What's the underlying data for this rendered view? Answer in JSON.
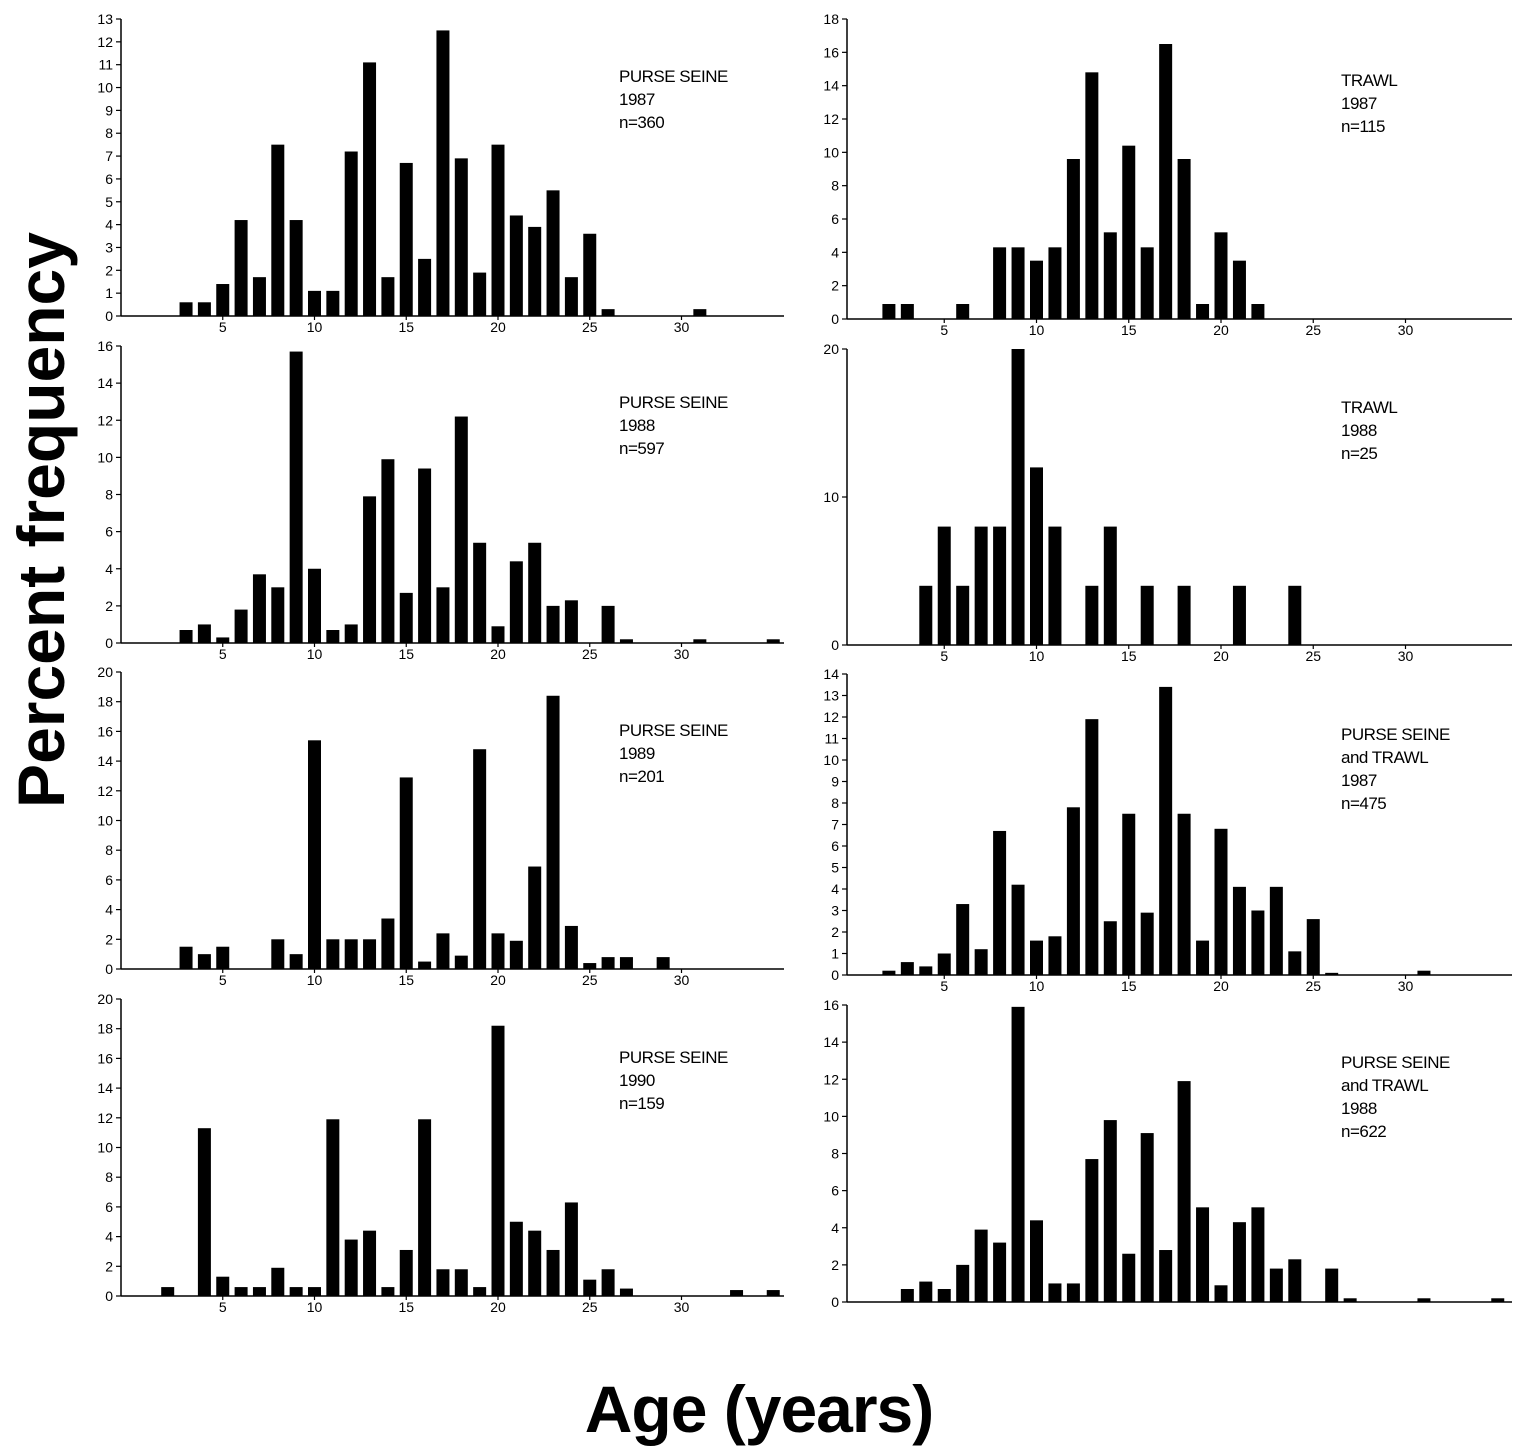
{
  "ylabel": "Percent frequency",
  "xlabel": "Age (years)",
  "chart_data": [
    {
      "type": "bar",
      "legend": [
        "PURSE SEINE",
        "1987",
        "n=360"
      ],
      "ylim": [
        0,
        13
      ],
      "yticks": [
        0,
        1,
        2,
        3,
        4,
        5,
        6,
        7,
        8,
        9,
        10,
        11,
        12,
        13
      ],
      "xticks": [
        5,
        10,
        15,
        20,
        25,
        30
      ],
      "x": [
        3,
        4,
        5,
        6,
        7,
        8,
        9,
        10,
        11,
        12,
        13,
        14,
        15,
        16,
        17,
        18,
        19,
        20,
        21,
        22,
        23,
        24,
        25,
        26,
        31
      ],
      "values": [
        0.6,
        0.6,
        1.4,
        4.2,
        1.7,
        7.5,
        4.2,
        1.1,
        1.1,
        7.2,
        11.1,
        1.7,
        6.7,
        2.5,
        12.5,
        6.9,
        1.9,
        7.5,
        4.4,
        3.9,
        5.5,
        1.7,
        3.6,
        0.3,
        0.3
      ]
    },
    {
      "type": "bar",
      "legend": [
        "TRAWL",
        "1987",
        "n=115"
      ],
      "ylim": [
        0,
        18
      ],
      "yticks": [
        0,
        2,
        4,
        6,
        8,
        10,
        12,
        14,
        16,
        18
      ],
      "xticks": [
        5,
        10,
        15,
        20,
        25,
        30
      ],
      "x": [
        2,
        3,
        6,
        8,
        9,
        10,
        11,
        12,
        13,
        14,
        15,
        16,
        17,
        18,
        19,
        20,
        21,
        22
      ],
      "values": [
        0.9,
        0.9,
        0.9,
        4.3,
        4.3,
        3.5,
        4.3,
        9.6,
        14.8,
        5.2,
        10.4,
        4.3,
        16.5,
        9.6,
        0.9,
        5.2,
        3.5,
        0.9
      ]
    },
    {
      "type": "bar",
      "legend": [
        "PURSE SEINE",
        "1988",
        "n=597"
      ],
      "ylim": [
        0,
        16
      ],
      "yticks": [
        0,
        2,
        4,
        6,
        8,
        10,
        12,
        14,
        16
      ],
      "xticks": [
        5,
        10,
        15,
        20,
        25,
        30
      ],
      "x": [
        3,
        4,
        5,
        6,
        7,
        8,
        9,
        10,
        11,
        12,
        13,
        14,
        15,
        16,
        17,
        18,
        19,
        20,
        21,
        22,
        23,
        24,
        26,
        27,
        31,
        35
      ],
      "values": [
        0.7,
        1.0,
        0.3,
        1.8,
        3.7,
        3.0,
        15.7,
        4.0,
        0.7,
        1.0,
        7.9,
        9.9,
        2.7,
        9.4,
        3.0,
        12.2,
        5.4,
        0.9,
        4.4,
        5.4,
        2.0,
        2.3,
        2.0,
        0.2,
        0.2,
        0.2
      ]
    },
    {
      "type": "bar",
      "legend": [
        "TRAWL",
        "1988",
        "n=25"
      ],
      "ylim": [
        0,
        20
      ],
      "yticks": [
        0,
        10,
        20
      ],
      "xticks": [
        5,
        10,
        15,
        20,
        25,
        30
      ],
      "x": [
        4,
        5,
        6,
        7,
        8,
        9,
        10,
        11,
        13,
        14,
        16,
        18,
        21,
        24
      ],
      "values": [
        4,
        8,
        4,
        8,
        8,
        20,
        12,
        8,
        4,
        8,
        4,
        4,
        4,
        4
      ]
    },
    {
      "type": "bar",
      "legend": [
        "PURSE SEINE",
        "1989",
        "n=201"
      ],
      "ylim": [
        0,
        20
      ],
      "yticks": [
        0,
        2,
        4,
        6,
        8,
        10,
        12,
        14,
        16,
        18,
        20
      ],
      "xticks": [
        5,
        10,
        15,
        20,
        25,
        30
      ],
      "x": [
        3,
        4,
        5,
        8,
        9,
        10,
        11,
        12,
        13,
        14,
        15,
        16,
        17,
        18,
        19,
        20,
        21,
        22,
        23,
        24,
        25,
        26,
        27,
        29
      ],
      "values": [
        1.5,
        1.0,
        1.5,
        2.0,
        1.0,
        15.4,
        2.0,
        2.0,
        2.0,
        3.4,
        12.9,
        0.5,
        2.4,
        0.9,
        14.8,
        2.4,
        1.9,
        6.9,
        18.4,
        2.9,
        0.4,
        0.8,
        0.8,
        0.8
      ]
    },
    {
      "type": "bar",
      "legend": [
        "PURSE SEINE",
        "and TRAWL",
        "1987",
        "n=475"
      ],
      "ylim": [
        0,
        14
      ],
      "yticks": [
        0,
        1,
        2,
        3,
        4,
        5,
        6,
        7,
        8,
        9,
        10,
        11,
        12,
        13,
        14
      ],
      "xticks": [
        5,
        10,
        15,
        20,
        25,
        30
      ],
      "x": [
        2,
        3,
        4,
        5,
        6,
        7,
        8,
        9,
        10,
        11,
        12,
        13,
        14,
        15,
        16,
        17,
        18,
        19,
        20,
        21,
        22,
        23,
        24,
        25,
        26,
        31
      ],
      "values": [
        0.2,
        0.6,
        0.4,
        1.0,
        3.3,
        1.2,
        6.7,
        4.2,
        1.6,
        1.8,
        7.8,
        11.9,
        2.5,
        7.5,
        2.9,
        13.4,
        7.5,
        1.6,
        6.8,
        4.1,
        3.0,
        4.1,
        1.1,
        2.6,
        0.1,
        0.2
      ]
    },
    {
      "type": "bar",
      "legend": [
        "PURSE SEINE",
        "1990",
        "n=159"
      ],
      "ylim": [
        0,
        20
      ],
      "yticks": [
        0,
        2,
        4,
        6,
        8,
        10,
        12,
        14,
        16,
        18,
        20
      ],
      "xticks": [
        5,
        10,
        15,
        20,
        25,
        30
      ],
      "x": [
        2,
        4,
        5,
        6,
        7,
        8,
        9,
        10,
        11,
        12,
        13,
        14,
        15,
        16,
        17,
        18,
        19,
        20,
        21,
        22,
        23,
        24,
        25,
        26,
        27,
        33,
        35
      ],
      "values": [
        0.6,
        11.3,
        1.3,
        0.6,
        0.6,
        1.9,
        0.6,
        0.6,
        11.9,
        3.8,
        4.4,
        0.6,
        3.1,
        11.9,
        1.8,
        1.8,
        0.6,
        18.2,
        5.0,
        4.4,
        3.1,
        6.3,
        1.1,
        1.8,
        0.5,
        0.4,
        0.4
      ]
    },
    {
      "type": "bar",
      "legend": [
        "PURSE SEINE",
        "and TRAWL",
        "1988",
        "n=622"
      ],
      "ylim": [
        0,
        16
      ],
      "yticks": [
        0,
        2,
        4,
        6,
        8,
        10,
        12,
        14,
        16
      ],
      "xticks": [],
      "x": [
        3,
        4,
        5,
        6,
        7,
        8,
        9,
        10,
        11,
        12,
        13,
        14,
        15,
        16,
        17,
        18,
        19,
        20,
        21,
        22,
        23,
        24,
        26,
        27,
        31,
        35
      ],
      "values": [
        0.7,
        1.1,
        0.7,
        2.0,
        3.9,
        3.2,
        15.9,
        4.4,
        1.0,
        1.0,
        7.7,
        9.8,
        2.6,
        9.1,
        2.8,
        11.9,
        5.1,
        0.9,
        4.3,
        5.1,
        1.8,
        2.3,
        1.8,
        0.2,
        0.2,
        0.2
      ]
    }
  ]
}
